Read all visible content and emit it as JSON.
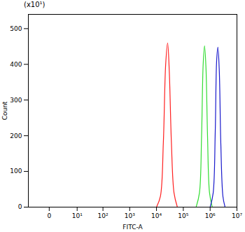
{
  "chart_data": {
    "type": "line",
    "log": "x",
    "grid": false,
    "x_label": "FITC-A",
    "y_label": "Count",
    "annotation": "(x10¹)",
    "xlim": [
      -5,
      10000000
    ],
    "xticks": [
      0,
      {
        "value": 10,
        "label": "10¹"
      },
      {
        "value": 100,
        "label": "10²"
      },
      {
        "value": 1000,
        "label": "10³"
      },
      {
        "value": 10000,
        "label": "10⁴"
      },
      {
        "value": 100000,
        "label": "10⁵"
      },
      {
        "value": 1000000,
        "label": "10⁶"
      },
      {
        "value": 10000000,
        "label": "10⁷"
      }
    ],
    "ylim": [
      0,
      540
    ],
    "yticks": [
      0,
      100,
      200,
      300,
      400,
      500
    ],
    "series": [
      {
        "color": "#ff2020",
        "x": [
          10000,
          14000,
          18000,
          22000,
          26000,
          30000,
          36000,
          45000,
          60000
        ],
        "values": [
          0,
          30,
          180,
          400,
          460,
          380,
          180,
          40,
          0
        ]
      },
      {
        "color": "#33dd33",
        "x": [
          300000,
          400000,
          480000,
          550000,
          620000,
          700000,
          800000,
          950000,
          1200000
        ],
        "values": [
          0,
          40,
          200,
          400,
          452,
          390,
          200,
          40,
          0
        ]
      },
      {
        "color": "#1a1acc",
        "x": [
          1000000,
          1300000,
          1550000,
          1750000,
          1950000,
          2200000,
          2500000,
          3000000,
          3600000
        ],
        "values": [
          0,
          40,
          210,
          410,
          448,
          380,
          180,
          30,
          0
        ]
      }
    ]
  }
}
